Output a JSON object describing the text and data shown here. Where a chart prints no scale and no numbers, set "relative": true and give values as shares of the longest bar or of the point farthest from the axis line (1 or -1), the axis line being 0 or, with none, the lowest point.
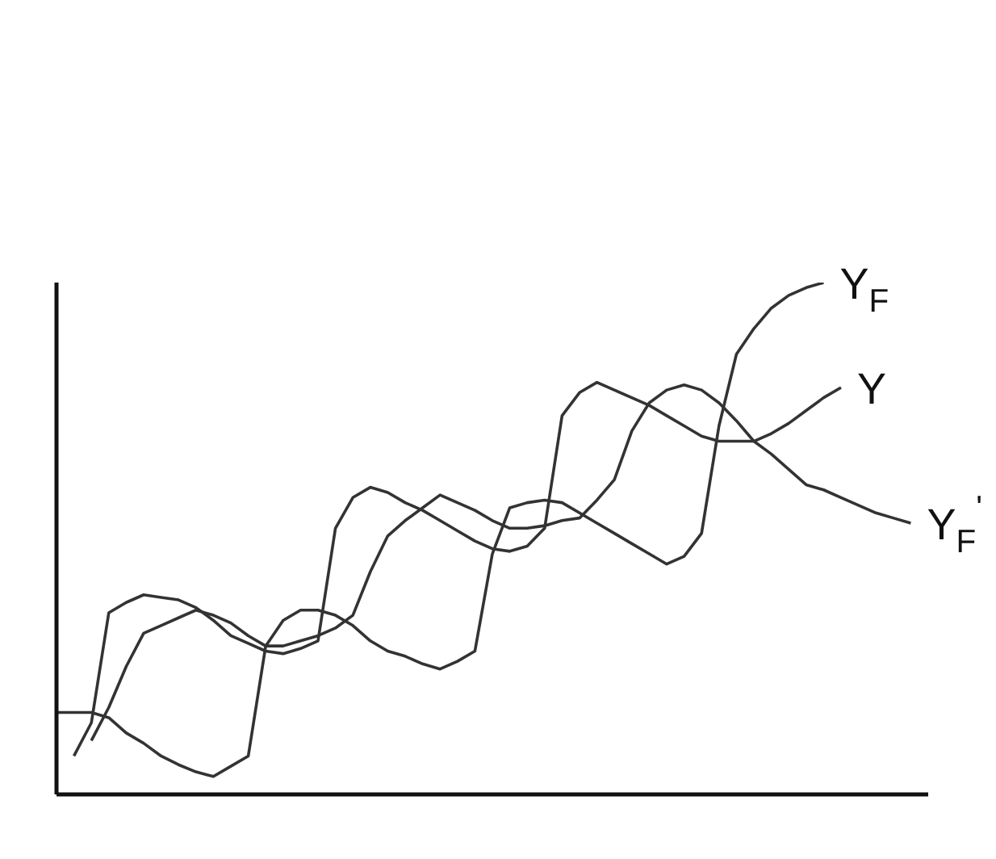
{
  "chart_data": {
    "type": "line",
    "relative": true,
    "line_style": "solid",
    "marker": "none",
    "categories": [
      null,
      null,
      null,
      null,
      null,
      null,
      null,
      null,
      null,
      null,
      null,
      null,
      null,
      null,
      null,
      null,
      null,
      null,
      null,
      null,
      null,
      null,
      null,
      null,
      null,
      null,
      null,
      null,
      null,
      null,
      null,
      null,
      null,
      null,
      null,
      null,
      null,
      null,
      null,
      null,
      null,
      null,
      null,
      null,
      null,
      null,
      null,
      null,
      null,
      null,
      null
    ],
    "series": [
      {
        "name": "Y$_{F}$",
        "color": "#333333",
        "values": [
          0.16,
          0.16,
          0.16,
          0.15,
          0.12,
          0.1,
          0.075,
          0.058,
          0.044,
          0.035,
          0.055,
          0.075,
          0.29,
          0.34,
          0.36,
          0.36,
          0.35,
          0.33,
          0.3,
          0.28,
          0.27,
          0.255,
          0.245,
          0.26,
          0.28,
          0.47,
          0.56,
          0.57,
          0.575,
          0.57,
          0.55,
          0.53,
          0.51,
          0.49,
          0.47,
          0.45,
          0.465,
          0.51,
          0.72,
          0.86,
          0.91,
          0.95,
          0.975,
          0.99,
          1,
          null,
          null,
          null,
          null,
          null,
          null
        ]
      },
      {
        "name": "Y",
        "color": "#333333",
        "values": [
          null,
          0.075,
          0.14,
          0.355,
          0.375,
          0.39,
          0.385,
          0.38,
          0.365,
          0.34,
          0.31,
          0.295,
          0.28,
          0.275,
          0.285,
          0.3,
          0.52,
          0.58,
          0.6,
          0.59,
          0.57,
          0.555,
          0.535,
          0.515,
          0.495,
          0.48,
          0.475,
          0.485,
          0.52,
          0.74,
          0.785,
          0.805,
          0.79,
          0.775,
          0.76,
          0.74,
          0.72,
          0.7,
          0.69,
          0.69,
          0.69,
          0.705,
          0.725,
          0.75,
          0.775,
          0.795,
          null,
          null,
          null,
          null,
          null
        ]
      },
      {
        "name": "Y$_{F}$$^{'}$",
        "color": "#333333",
        "values": [
          null,
          null,
          0.105,
          0.17,
          0.25,
          0.315,
          0.33,
          0.345,
          0.36,
          0.35,
          0.335,
          0.31,
          0.29,
          0.29,
          0.3,
          0.31,
          0.325,
          0.35,
          0.435,
          0.505,
          0.535,
          0.56,
          0.585,
          0.57,
          0.555,
          0.535,
          0.52,
          0.52,
          0.525,
          0.535,
          0.54,
          0.575,
          0.615,
          0.71,
          0.765,
          0.79,
          0.8,
          0.79,
          0.765,
          0.73,
          0.69,
          0.665,
          0.635,
          0.605,
          0.595,
          0.58,
          0.565,
          0.55,
          0.54,
          0.53,
          null
        ]
      }
    ]
  }
}
